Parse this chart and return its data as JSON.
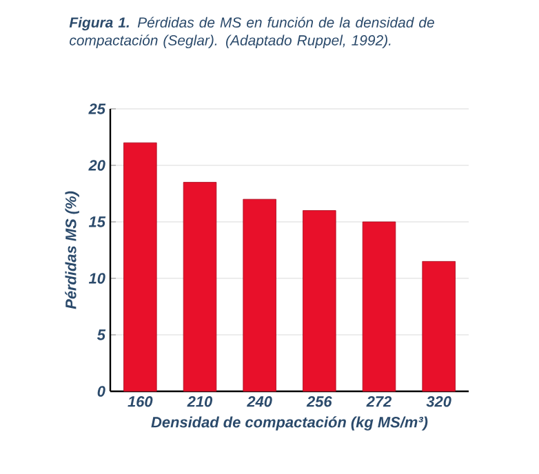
{
  "chart_data": {
    "type": "bar",
    "title": "**Figura 1.** Pérdidas de MS en función de la densidad de compactación (Seglar). (Adaptado Ruppel, 1992).",
    "xlabel": "Densidad de compactación (kg MS/m³)",
    "ylabel": "Pérdidas MS (%)",
    "categories": [
      "160",
      "210",
      "240",
      "256",
      "272",
      "320"
    ],
    "values": [
      22,
      18.5,
      17,
      16,
      15,
      11.5
    ],
    "color": "#e8102a",
    "ylim": [
      0,
      25
    ],
    "yticks": [
      0,
      5,
      10,
      15,
      20,
      25
    ],
    "grid": "y"
  }
}
